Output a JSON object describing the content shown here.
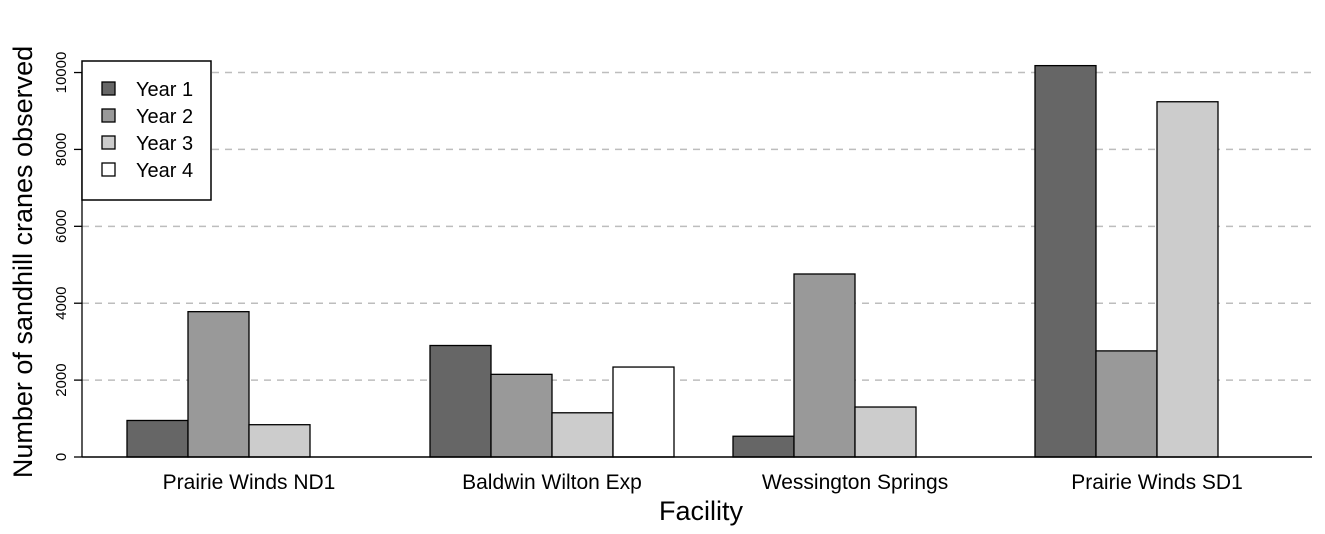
{
  "chart_data": {
    "type": "bar",
    "title": "",
    "xlabel": "Facility",
    "ylabel": "Number of sandhill cranes observed",
    "categories": [
      "Prairie Winds ND1",
      "Baldwin Wilton Exp",
      "Wessington Springs",
      "Prairie Winds SD1"
    ],
    "series": [
      {
        "name": "Year 1",
        "color": "#666666",
        "values": [
          950,
          2900,
          540,
          10180
        ]
      },
      {
        "name": "Year 2",
        "color": "#999999",
        "values": [
          3780,
          2150,
          4760,
          2760
        ]
      },
      {
        "name": "Year 3",
        "color": "#cccccc",
        "values": [
          840,
          1150,
          1300,
          9240
        ]
      },
      {
        "name": "Year 4",
        "color": "#ffffff",
        "values": [
          null,
          2340,
          null,
          null
        ]
      }
    ],
    "ylim": [
      0,
      10300
    ],
    "yticks": [
      0,
      2000,
      4000,
      6000,
      8000,
      10000
    ],
    "ytick_labels": [
      "0",
      "2000",
      "4000",
      "6000",
      "8000",
      "10000"
    ],
    "grid": "horizontal dashed",
    "legend": "top-left"
  }
}
